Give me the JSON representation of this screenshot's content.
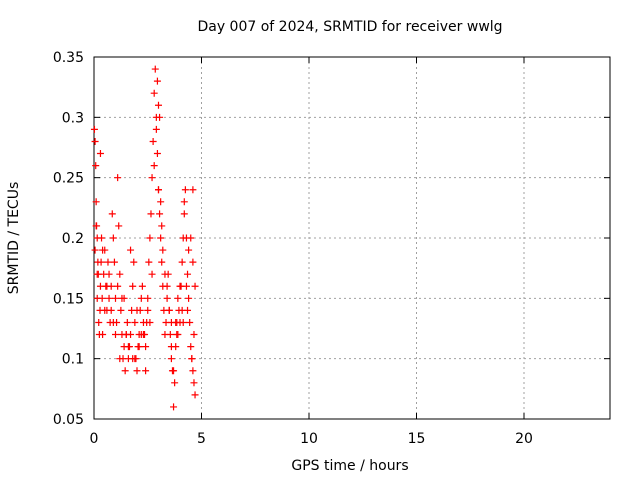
{
  "chart_data": {
    "type": "scatter",
    "title": "Day 007 of 2024, SRMTID for receiver wwlg",
    "xlabel": "GPS time / hours",
    "ylabel": "SRMTID / TECUs",
    "xlim": [
      0,
      24
    ],
    "ylim": [
      0.05,
      0.35
    ],
    "xticks": [
      0,
      5,
      10,
      15,
      20
    ],
    "xtick_labels": [
      "0",
      "5",
      "10",
      "15",
      "20"
    ],
    "yticks": [
      0.05,
      0.1,
      0.15,
      0.2,
      0.25,
      0.3,
      0.35
    ],
    "ytick_labels": [
      "0.05",
      "0.1",
      "0.15",
      "0.2",
      "0.25",
      "0.3",
      "0.35"
    ],
    "grid": true,
    "marker": "plus",
    "series": [
      {
        "name": "SRMTID",
        "color": "#ff0000",
        "x": [
          0.02,
          0.05,
          0.08,
          0.1,
          0.12,
          0.15,
          0.18,
          0.2,
          0.05,
          0.1,
          0.15,
          0.22,
          0.25,
          0.28,
          0.3,
          0.33,
          0.35,
          0.38,
          0.4,
          0.45,
          0.5,
          0.55,
          0.6,
          0.65,
          0.7,
          0.75,
          0.8,
          0.85,
          0.9,
          0.95,
          1.0,
          1.05,
          1.1,
          1.15,
          1.2,
          1.25,
          1.3,
          1.35,
          1.4,
          1.45,
          1.5,
          1.55,
          1.6,
          1.65,
          1.7,
          1.75,
          1.8,
          1.85,
          1.9,
          1.95,
          2.0,
          2.05,
          2.1,
          2.15,
          2.2,
          2.25,
          2.3,
          2.35,
          2.4,
          2.45,
          2.5,
          2.55,
          2.6,
          2.65,
          2.7,
          2.75,
          2.8,
          2.85,
          2.9,
          2.95,
          3.0,
          3.05,
          3.1,
          3.15,
          3.2,
          3.25,
          3.3,
          3.35,
          3.4,
          3.45,
          3.5,
          3.55,
          3.6,
          3.65,
          3.7,
          3.75,
          3.8,
          3.85,
          3.9,
          3.95,
          4.0,
          4.05,
          4.1,
          4.15,
          4.2,
          4.25,
          4.3,
          4.35,
          4.4,
          4.45,
          4.5,
          4.55,
          4.6,
          4.65,
          4.7,
          0.3,
          0.6,
          0.9,
          1.2,
          1.4,
          1.7,
          2.1,
          2.4,
          2.7,
          2.8,
          2.9,
          3.0,
          3.1,
          3.3,
          3.5,
          3.7,
          3.9,
          4.1,
          4.3,
          4.5,
          4.6,
          0.4,
          0.8,
          1.0,
          1.3,
          1.6,
          1.9,
          2.2,
          2.6,
          3.0,
          3.2,
          3.4,
          3.6,
          3.8,
          4.0,
          4.2,
          4.4,
          4.6,
          4.7,
          0.15,
          0.5,
          0.7,
          1.1,
          1.5,
          1.8,
          2.0,
          2.3,
          2.5,
          2.95,
          3.05,
          3.15,
          3.6,
          3.85,
          4.15,
          4.35,
          4.55,
          4.65
        ],
        "values": [
          0.29,
          0.28,
          0.26,
          0.23,
          0.21,
          0.2,
          0.18,
          0.17,
          0.19,
          0.21,
          0.15,
          0.13,
          0.12,
          0.14,
          0.16,
          0.18,
          0.2,
          0.15,
          0.12,
          0.17,
          0.19,
          0.16,
          0.14,
          0.18,
          0.15,
          0.13,
          0.16,
          0.22,
          0.2,
          0.18,
          0.15,
          0.13,
          0.25,
          0.21,
          0.17,
          0.14,
          0.12,
          0.1,
          0.11,
          0.09,
          0.12,
          0.13,
          0.1,
          0.11,
          0.12,
          0.14,
          0.16,
          0.18,
          0.13,
          0.1,
          0.09,
          0.11,
          0.12,
          0.14,
          0.15,
          0.16,
          0.13,
          0.12,
          0.11,
          0.13,
          0.14,
          0.18,
          0.2,
          0.22,
          0.25,
          0.28,
          0.32,
          0.34,
          0.3,
          0.27,
          0.24,
          0.22,
          0.2,
          0.18,
          0.16,
          0.14,
          0.12,
          0.13,
          0.15,
          0.17,
          0.14,
          0.12,
          0.1,
          0.09,
          0.06,
          0.08,
          0.11,
          0.13,
          0.15,
          0.14,
          0.13,
          0.16,
          0.18,
          0.2,
          0.22,
          0.24,
          0.2,
          0.17,
          0.15,
          0.13,
          0.11,
          0.1,
          0.09,
          0.08,
          0.07,
          0.27,
          0.16,
          0.13,
          0.1,
          0.15,
          0.19,
          0.11,
          0.09,
          0.17,
          0.26,
          0.29,
          0.31,
          0.23,
          0.17,
          0.14,
          0.09,
          0.12,
          0.14,
          0.16,
          0.2,
          0.18,
          0.19,
          0.14,
          0.12,
          0.15,
          0.11,
          0.1,
          0.12,
          0.13,
          0.24,
          0.19,
          0.16,
          0.11,
          0.13,
          0.16,
          0.23,
          0.19,
          0.24,
          0.16,
          0.17,
          0.14,
          0.17,
          0.16,
          0.12,
          0.1,
          0.14,
          0.12,
          0.15,
          0.33,
          0.3,
          0.21,
          0.13,
          0.12,
          0.13,
          0.14,
          0.1,
          0.12
        ]
      }
    ]
  }
}
